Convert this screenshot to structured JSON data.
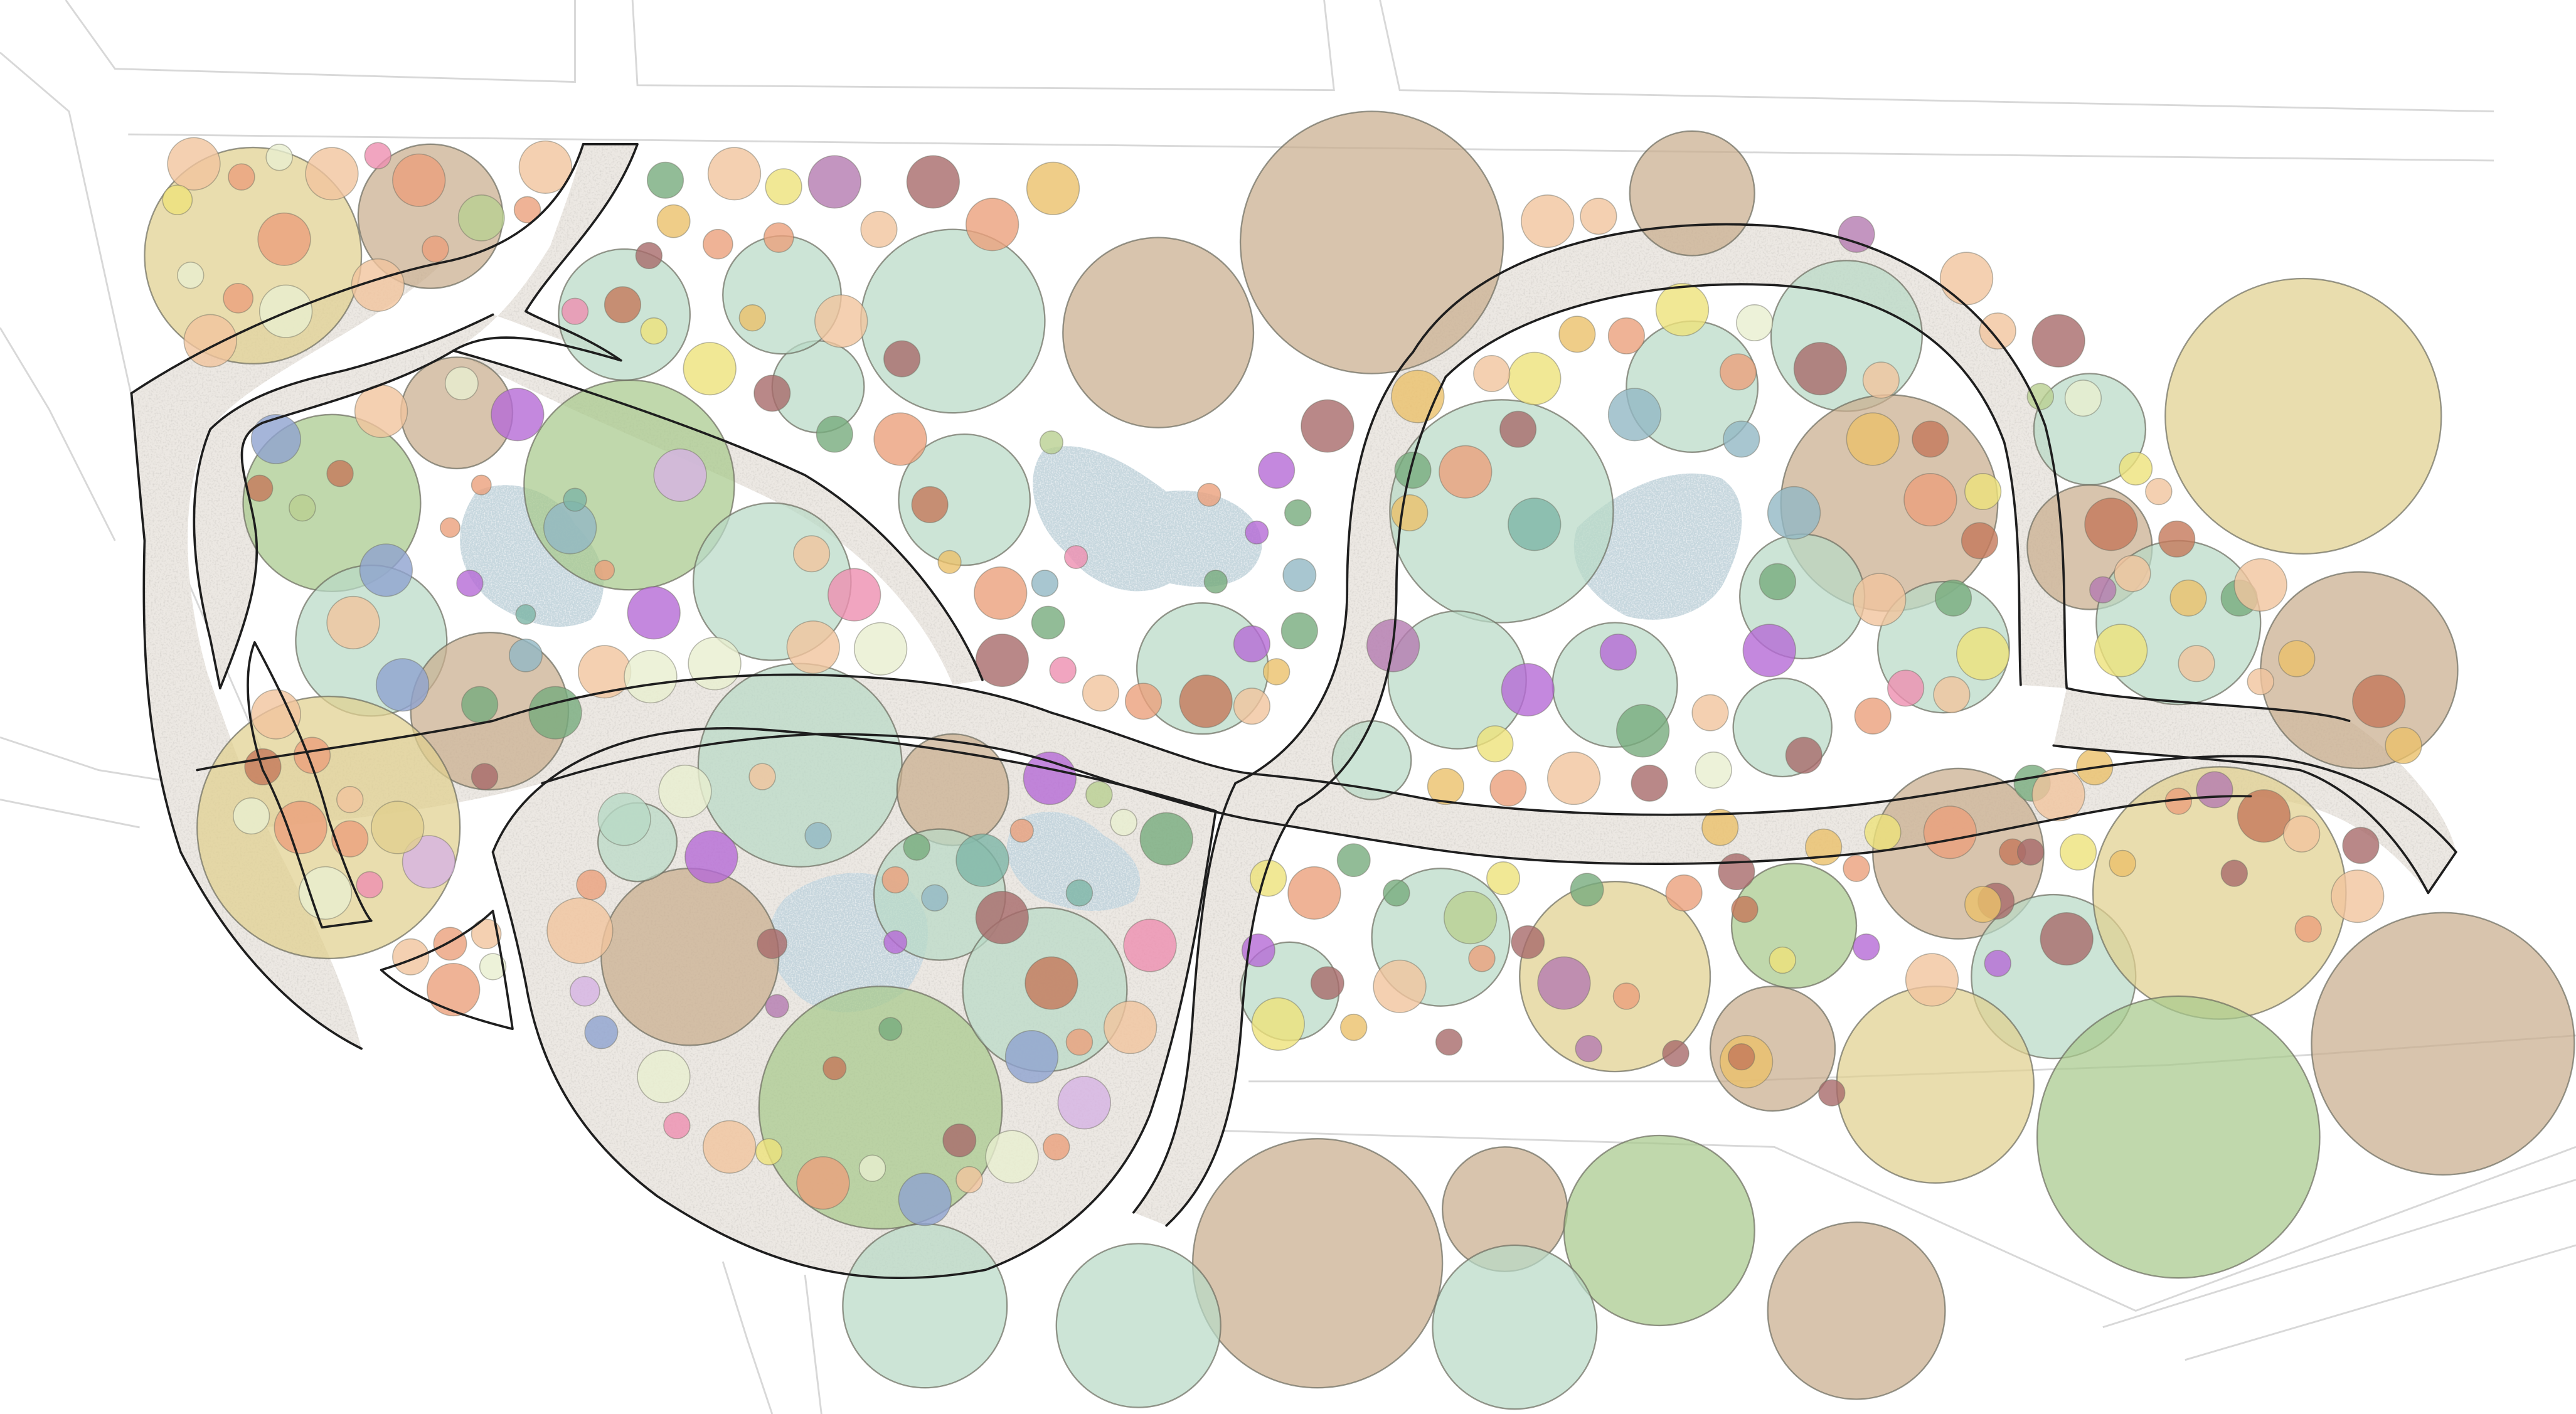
{
  "plan": {
    "title": "",
    "colors": {
      "background": "#ffffff",
      "parcel_line": "#d8d8d8",
      "path_fill": "#ece8e3",
      "path_edge": "#1e1e1e",
      "water": "#c4d5dd",
      "tree_border": "#6b6b5e"
    },
    "palette": {
      "mint": "#b8d9c6",
      "sage": "#a8c98c",
      "taupe": "#c9ad8d",
      "khaki": "#e1d08f",
      "salmon": "#eba07c",
      "peach": "#f1c49e",
      "plum": "#b47ab0",
      "violet": "#b56ad6",
      "lilac": "#d6b3e3",
      "rust": "#c4785a",
      "maroon": "#a86a6a",
      "pink": "#ee8fb0",
      "yellow": "#eee27a",
      "mustard": "#ebc06a",
      "blue": "#8ea3cf",
      "steel": "#92b8c4",
      "teal": "#7db5a6",
      "green": "#77ab7d",
      "olive": "#b9cf91",
      "cream": "#e8efcf"
    },
    "legend": []
  }
}
